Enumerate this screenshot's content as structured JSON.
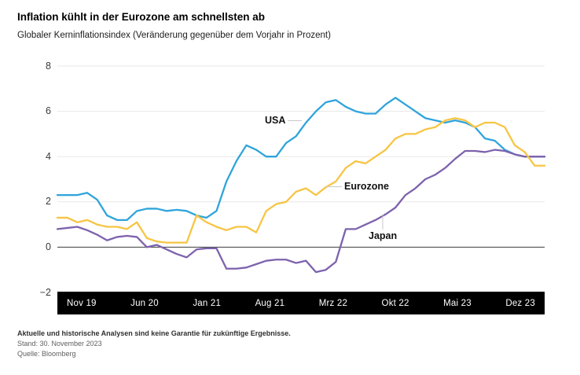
{
  "header": {
    "title": "Inflation kühlt in der Eurozone am schnellsten ab",
    "subtitle": "Globaler Kerninflationsindex (Veränderung gegenüber dem Vorjahr in Prozent)"
  },
  "chart_data": {
    "type": "line",
    "title": "Inflation kühlt in der Eurozone am schnellsten ab",
    "subtitle": "Globaler Kerninflationsindex (Veränderung gegenüber dem Vorjahr in Prozent)",
    "x": [
      "Nov 19",
      "Dez 19",
      "Jan 20",
      "Feb 20",
      "Mrz 20",
      "Apr 20",
      "Mai 20",
      "Jun 20",
      "Jul 20",
      "Aug 20",
      "Sep 20",
      "Okt 20",
      "Nov 20",
      "Dez 20",
      "Jan 21",
      "Feb 21",
      "Mrz 21",
      "Apr 21",
      "Mai 21",
      "Jun 21",
      "Jul 21",
      "Aug 21",
      "Sep 21",
      "Okt 21",
      "Nov 21",
      "Dez 21",
      "Jan 22",
      "Feb 22",
      "Mrz 22",
      "Apr 22",
      "Mai 22",
      "Jun 22",
      "Jul 22",
      "Aug 22",
      "Sep 22",
      "Okt 22",
      "Nov 22",
      "Dez 22",
      "Jan 23",
      "Feb 23",
      "Mrz 23",
      "Apr 23",
      "Mai 23",
      "Jun 23",
      "Jul 23",
      "Aug 23",
      "Sep 23",
      "Okt 23",
      "Nov 23",
      "Dez 23"
    ],
    "x_tick_labels": [
      "Nov 19",
      "Jun 20",
      "Jan 21",
      "Aug 21",
      "Mrz 22",
      "Okt 22",
      "Mai 23",
      "Dez 23"
    ],
    "y_ticks": [
      8,
      6,
      4,
      2,
      0,
      -2
    ],
    "y_tick_labels": [
      "8",
      "6",
      "4",
      "2",
      "0",
      "−2"
    ],
    "ylim": [
      -2,
      8
    ],
    "grid": true,
    "legend_position": "inline-annotations",
    "series": [
      {
        "name": "USA",
        "color": "#2FA4DB",
        "values": [
          2.3,
          2.3,
          2.3,
          2.4,
          2.1,
          1.4,
          1.2,
          1.2,
          1.6,
          1.7,
          1.7,
          1.6,
          1.65,
          1.6,
          1.4,
          1.3,
          1.6,
          2.9,
          3.8,
          4.5,
          4.3,
          4.0,
          4.0,
          4.6,
          4.9,
          5.5,
          6.0,
          6.4,
          6.5,
          6.2,
          6.0,
          5.9,
          5.9,
          6.3,
          6.6,
          6.3,
          6.0,
          5.7,
          5.6,
          5.5,
          5.6,
          5.5,
          5.3,
          4.8,
          4.7,
          4.3,
          4.1,
          4.0,
          4.0,
          4.0
        ]
      },
      {
        "name": "Eurozone",
        "color": "#F7C544",
        "values": [
          1.3,
          1.3,
          1.1,
          1.2,
          1.0,
          0.9,
          0.9,
          0.8,
          1.1,
          0.4,
          0.25,
          0.2,
          0.2,
          0.2,
          1.4,
          1.1,
          0.9,
          0.75,
          0.9,
          0.9,
          0.65,
          1.6,
          1.9,
          2.0,
          2.45,
          2.6,
          2.3,
          2.65,
          2.9,
          3.5,
          3.8,
          3.7,
          4.0,
          4.3,
          4.8,
          5.0,
          5.0,
          5.2,
          5.3,
          5.6,
          5.7,
          5.6,
          5.3,
          5.5,
          5.5,
          5.3,
          4.5,
          4.2,
          3.6,
          3.6
        ]
      },
      {
        "name": "Japan",
        "color": "#7D62AD",
        "values": [
          0.8,
          0.85,
          0.9,
          0.75,
          0.55,
          0.3,
          0.45,
          0.5,
          0.45,
          0.0,
          0.1,
          -0.1,
          -0.3,
          -0.45,
          -0.1,
          -0.05,
          -0.05,
          -0.95,
          -0.95,
          -0.9,
          -0.75,
          -0.6,
          -0.55,
          -0.55,
          -0.7,
          -0.6,
          -1.1,
          -1.0,
          -0.65,
          0.8,
          0.8,
          1.0,
          1.2,
          1.45,
          1.75,
          2.3,
          2.6,
          3.0,
          3.2,
          3.5,
          3.9,
          4.25,
          4.25,
          4.2,
          4.3,
          4.25,
          4.1,
          4.0,
          4.0,
          4.0
        ]
      }
    ]
  },
  "footer": {
    "disclaimer": "Aktuelle und historische Analysen sind keine Garantie für zukünftige Ergebnisse.",
    "as_of": "Stand: 30. November 2023",
    "source": "Quelle: Bloomberg"
  },
  "colors": {
    "usa_line": "#2FA4DB",
    "eurozone_line": "#F7C544",
    "japan_line": "#7D62AD",
    "zero_line": "#3c3c3c",
    "gridline": "#e8e8e8",
    "axis_band_background": "#000000",
    "axis_band_text": "#ffffff"
  }
}
